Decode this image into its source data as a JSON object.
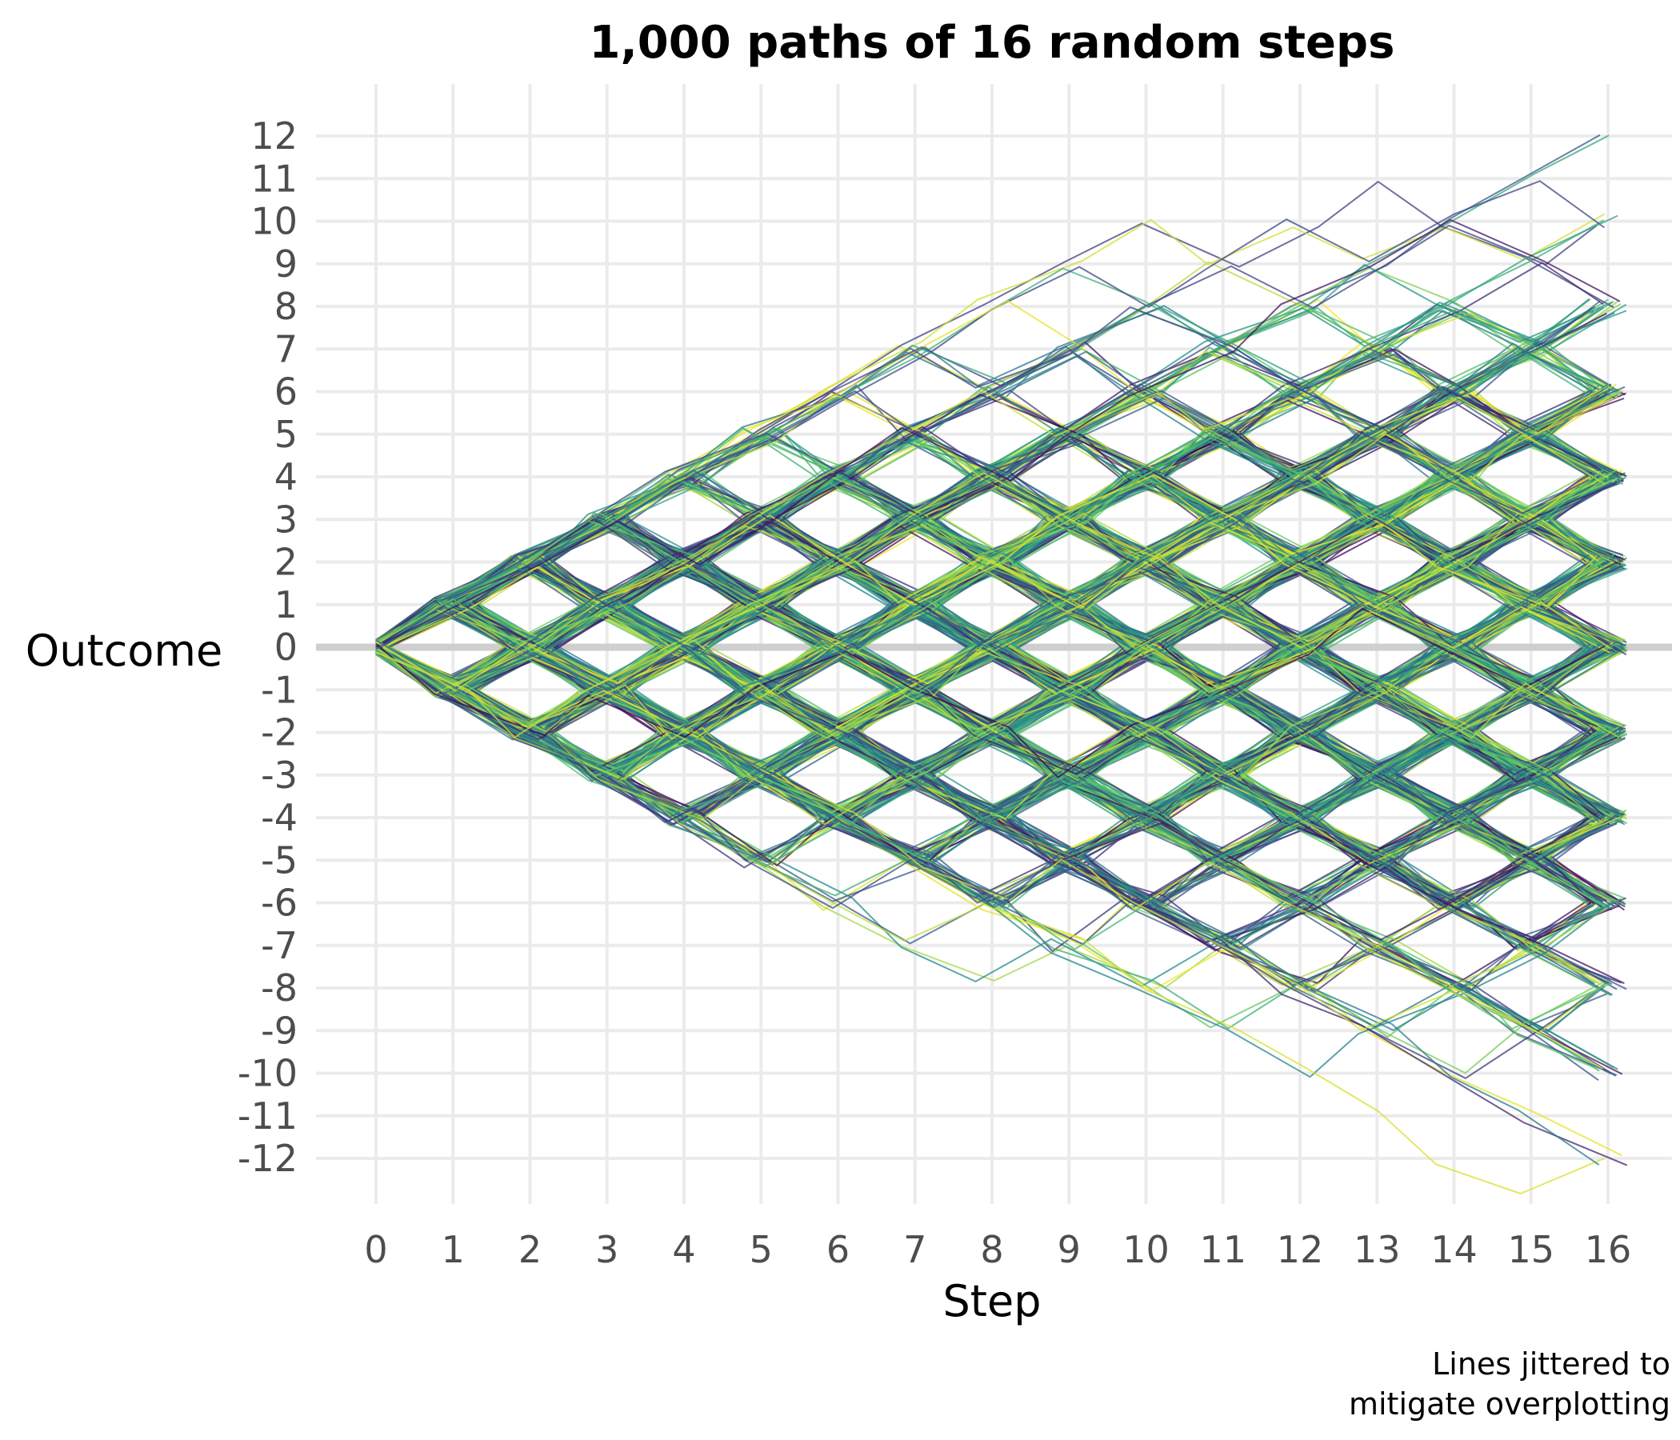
{
  "chart_data": {
    "type": "line",
    "title": "1,000 paths of 16 random steps",
    "xlabel": "Step",
    "ylabel": "Outcome",
    "caption_lines": [
      "Lines jittered to",
      "mitigate overplotting"
    ],
    "x_ticks": [
      "0",
      "1",
      "2",
      "3",
      "4",
      "5",
      "6",
      "7",
      "8",
      "9",
      "10",
      "11",
      "12",
      "13",
      "14",
      "15",
      "16"
    ],
    "y_ticks": [
      "12",
      "11",
      "10",
      "9",
      "8",
      "7",
      "6",
      "5",
      "4",
      "3",
      "2",
      "1",
      "0",
      "-1",
      "-2",
      "-3",
      "-4",
      "-5",
      "-6",
      "-7",
      "-8",
      "-9",
      "-10",
      "-11",
      "-12"
    ],
    "xlim": [
      0,
      16
    ],
    "ylim": [
      -12,
      12
    ],
    "n_paths": 1000,
    "steps": 16,
    "step_values": [
      -1,
      1
    ],
    "jitter": true,
    "reference_line_y": 0,
    "grid": true,
    "legend": "none",
    "color_scale": "viridis",
    "colors": [
      "#440154",
      "#3b528b",
      "#21918c",
      "#5ec962",
      "#fde725"
    ]
  }
}
